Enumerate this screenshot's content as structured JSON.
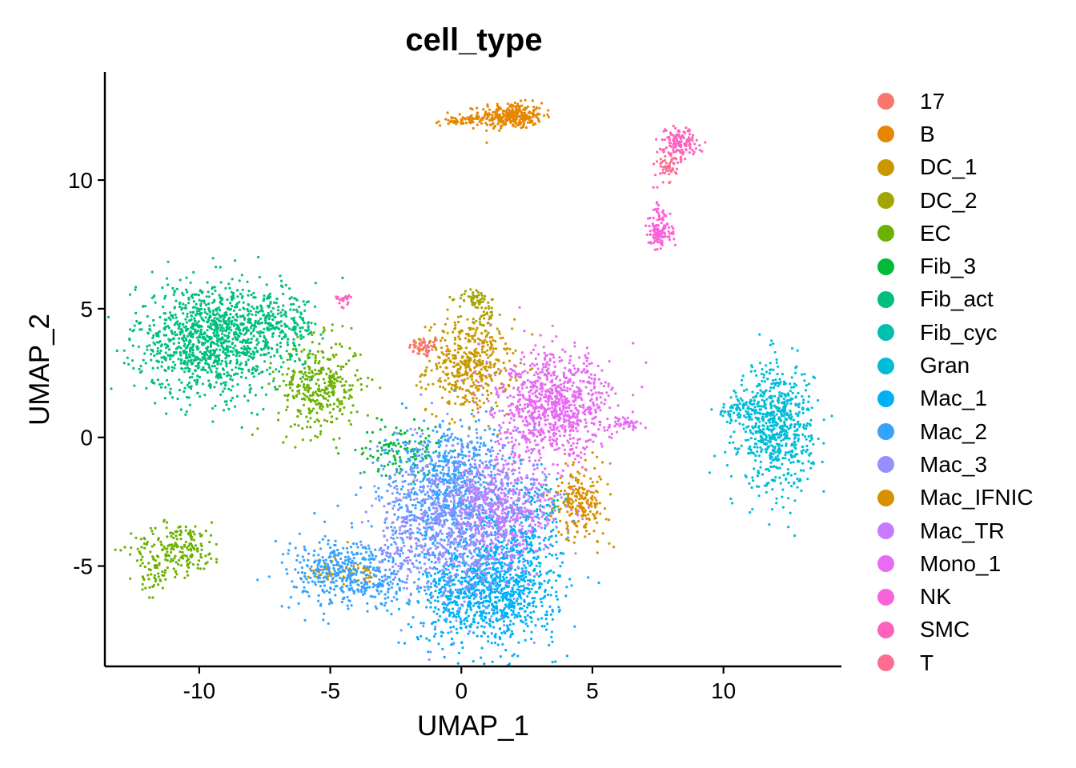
{
  "chart_data": {
    "type": "scatter",
    "title": "cell_type",
    "xlabel": "UMAP_1",
    "ylabel": "UMAP_2",
    "xlim": [
      -13.6,
      14.5
    ],
    "ylim": [
      -8.9,
      14.2
    ],
    "xticks": [
      -10,
      -5,
      0,
      5,
      10
    ],
    "yticks": [
      -5,
      0,
      5,
      10
    ],
    "xtick_labels": [
      "-10",
      "-5",
      "0",
      "5",
      "10"
    ],
    "ytick_labels": [
      "-5",
      "0",
      "5",
      "10"
    ],
    "grid": false,
    "legend_position": "right",
    "series": [
      {
        "name": "17",
        "color": "#F8766D",
        "clusters": [
          {
            "cx": -1.4,
            "cy": 3.5,
            "sx": 0.3,
            "sy": 0.2,
            "n": 60
          }
        ]
      },
      {
        "name": "B",
        "color": "#E58700",
        "clusters": [
          {
            "cx": 1.9,
            "cy": 12.5,
            "sx": 0.6,
            "sy": 0.25,
            "n": 300
          },
          {
            "cx": 0.0,
            "cy": 12.3,
            "sx": 0.5,
            "sy": 0.1,
            "n": 60
          }
        ]
      },
      {
        "name": "DC_1",
        "color": "#C99800",
        "clusters": [
          {
            "cx": 0.3,
            "cy": 2.8,
            "sx": 0.8,
            "sy": 0.9,
            "n": 450
          },
          {
            "cx": -5.0,
            "cy": -5.1,
            "sx": 0.4,
            "sy": 0.3,
            "n": 40
          },
          {
            "cx": -3.7,
            "cy": -5.3,
            "sx": 0.3,
            "sy": 0.2,
            "n": 25
          }
        ]
      },
      {
        "name": "DC_2",
        "color": "#A3A500",
        "clusters": [
          {
            "cx": 0.5,
            "cy": 5.4,
            "sx": 0.3,
            "sy": 0.2,
            "n": 50
          },
          {
            "cx": 0.9,
            "cy": 4.7,
            "sx": 0.2,
            "sy": 0.4,
            "n": 30
          }
        ]
      },
      {
        "name": "EC",
        "color": "#6BB100",
        "clusters": [
          {
            "cx": -10.8,
            "cy": -4.3,
            "sx": 0.9,
            "sy": 0.5,
            "n": 200
          },
          {
            "cx": -11.7,
            "cy": -5.4,
            "sx": 0.25,
            "sy": 0.4,
            "n": 40
          },
          {
            "cx": -5.4,
            "cy": 2.0,
            "sx": 0.8,
            "sy": 0.9,
            "n": 350
          }
        ]
      },
      {
        "name": "Fib_3",
        "color": "#00BA38",
        "clusters": [
          {
            "cx": -2.3,
            "cy": -0.5,
            "sx": 0.8,
            "sy": 0.5,
            "n": 120
          }
        ]
      },
      {
        "name": "Fib_act",
        "color": "#00BF7D",
        "clusters": [
          {
            "cx": -9.6,
            "cy": 3.8,
            "sx": 1.4,
            "sy": 1.1,
            "n": 1100
          },
          {
            "cx": -7.2,
            "cy": 4.3,
            "sx": 0.9,
            "sy": 0.6,
            "n": 250
          }
        ]
      },
      {
        "name": "Fib_cyc",
        "color": "#00C0AF",
        "clusters": [
          {
            "cx": 3.3,
            "cy": -2.5,
            "sx": 0.4,
            "sy": 0.4,
            "n": 40
          }
        ]
      },
      {
        "name": "Gran",
        "color": "#00BCD8",
        "clusters": [
          {
            "cx": 12.0,
            "cy": 0.4,
            "sx": 0.7,
            "sy": 1.2,
            "n": 700
          },
          {
            "cx": 10.6,
            "cy": 1.0,
            "sx": 0.5,
            "sy": 0.2,
            "n": 60
          }
        ]
      },
      {
        "name": "Mac_1",
        "color": "#00B0F6",
        "clusters": [
          {
            "cx": 1.0,
            "cy": -6.0,
            "sx": 1.3,
            "sy": 1.0,
            "n": 1000
          },
          {
            "cx": 2.3,
            "cy": -3.6,
            "sx": 0.8,
            "sy": 1.2,
            "n": 250
          }
        ]
      },
      {
        "name": "Mac_2",
        "color": "#35A2FF",
        "clusters": [
          {
            "cx": -0.5,
            "cy": -2.0,
            "sx": 1.2,
            "sy": 1.3,
            "n": 800
          },
          {
            "cx": -4.2,
            "cy": -5.3,
            "sx": 1.2,
            "sy": 0.7,
            "n": 450
          }
        ]
      },
      {
        "name": "Mac_3",
        "color": "#9590FF",
        "clusters": [
          {
            "cx": -0.2,
            "cy": -3.4,
            "sx": 1.1,
            "sy": 1.6,
            "n": 700
          },
          {
            "cx": -2.4,
            "cy": -3.6,
            "sx": 0.5,
            "sy": 1.2,
            "n": 120
          }
        ]
      },
      {
        "name": "Mac_IFNIC",
        "color": "#D89000",
        "clusters": [
          {
            "cx": 4.6,
            "cy": -2.5,
            "sx": 0.5,
            "sy": 0.7,
            "n": 220
          }
        ]
      },
      {
        "name": "Mac_TR",
        "color": "#C77CFF",
        "clusters": [
          {
            "cx": 1.8,
            "cy": -2.8,
            "sx": 1.0,
            "sy": 1.0,
            "n": 500
          }
        ]
      },
      {
        "name": "Mono_1",
        "color": "#E76BF3",
        "clusters": [
          {
            "cx": 3.5,
            "cy": 1.2,
            "sx": 1.1,
            "sy": 1.0,
            "n": 900
          },
          {
            "cx": 6.3,
            "cy": 0.5,
            "sx": 0.3,
            "sy": 0.15,
            "n": 40
          }
        ]
      },
      {
        "name": "NK",
        "color": "#FA62DB",
        "clusters": [
          {
            "cx": 7.6,
            "cy": 8.0,
            "sx": 0.25,
            "sy": 0.35,
            "n": 120
          },
          {
            "cx": 7.5,
            "cy": 9.3,
            "sx": 0.08,
            "sy": 0.5,
            "n": 15
          }
        ]
      },
      {
        "name": "SMC",
        "color": "#FF62BC",
        "clusters": [
          {
            "cx": 8.3,
            "cy": 11.4,
            "sx": 0.35,
            "sy": 0.3,
            "n": 140
          },
          {
            "cx": -4.5,
            "cy": 5.4,
            "sx": 0.15,
            "sy": 0.12,
            "n": 25
          }
        ]
      },
      {
        "name": "T",
        "color": "#FF6C91",
        "clusters": [
          {
            "cx": 7.9,
            "cy": 10.6,
            "sx": 0.2,
            "sy": 0.3,
            "n": 50
          }
        ]
      }
    ]
  }
}
